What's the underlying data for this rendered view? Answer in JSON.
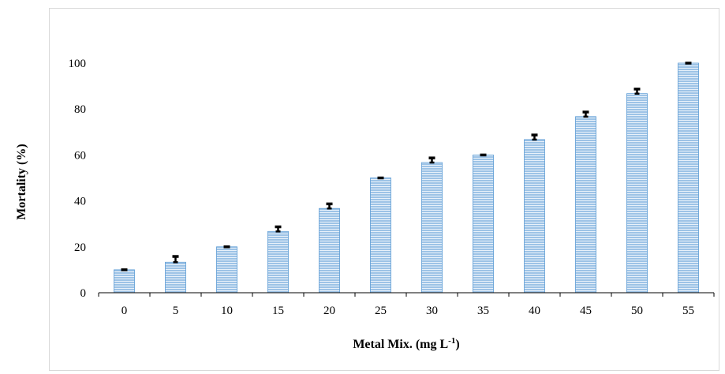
{
  "chart_data": {
    "type": "bar",
    "title": "",
    "xlabel": "Metal Mix. (mg L",
    "xlabel_superscript": "-1",
    "xlabel_suffix": ")",
    "ylabel": "Mortality (%)",
    "ylim": [
      0,
      100
    ],
    "yticks": [
      0,
      20,
      40,
      60,
      80,
      100
    ],
    "categories": [
      "0",
      "5",
      "10",
      "15",
      "20",
      "25",
      "30",
      "35",
      "40",
      "45",
      "50",
      "55"
    ],
    "series": [
      {
        "values": [
          10,
          13.3,
          20,
          26.7,
          36.7,
          50,
          56.7,
          60,
          66.7,
          76.7,
          86.7,
          100
        ],
        "error": [
          0,
          2.5,
          0,
          2,
          2,
          0,
          2,
          0,
          2,
          2,
          2,
          0
        ]
      }
    ],
    "grid": false,
    "legend": "none",
    "colors": {
      "bar_fill": "#9dc3e6",
      "bar_stripe": "#ffffff",
      "bar_edge": "#5b9bd5",
      "error": "#000000",
      "axis": "#000000"
    }
  }
}
